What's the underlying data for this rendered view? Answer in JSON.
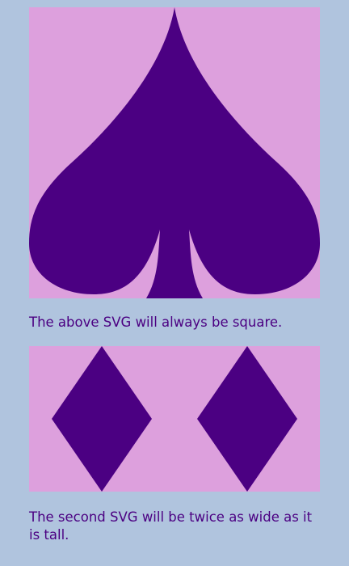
{
  "captions": {
    "square": "The above SVG will always be square.",
    "wide": "The second SVG will be twice as wide as it is tall."
  },
  "colors": {
    "page_background": "#b0c4de",
    "svg_background": "#dda0dd",
    "shape_fill": "#4b0082",
    "text": "#4b0082"
  },
  "shapes": {
    "square_svg": "spade-icon",
    "wide_svg": [
      "diamond-icon",
      "diamond-icon"
    ]
  }
}
